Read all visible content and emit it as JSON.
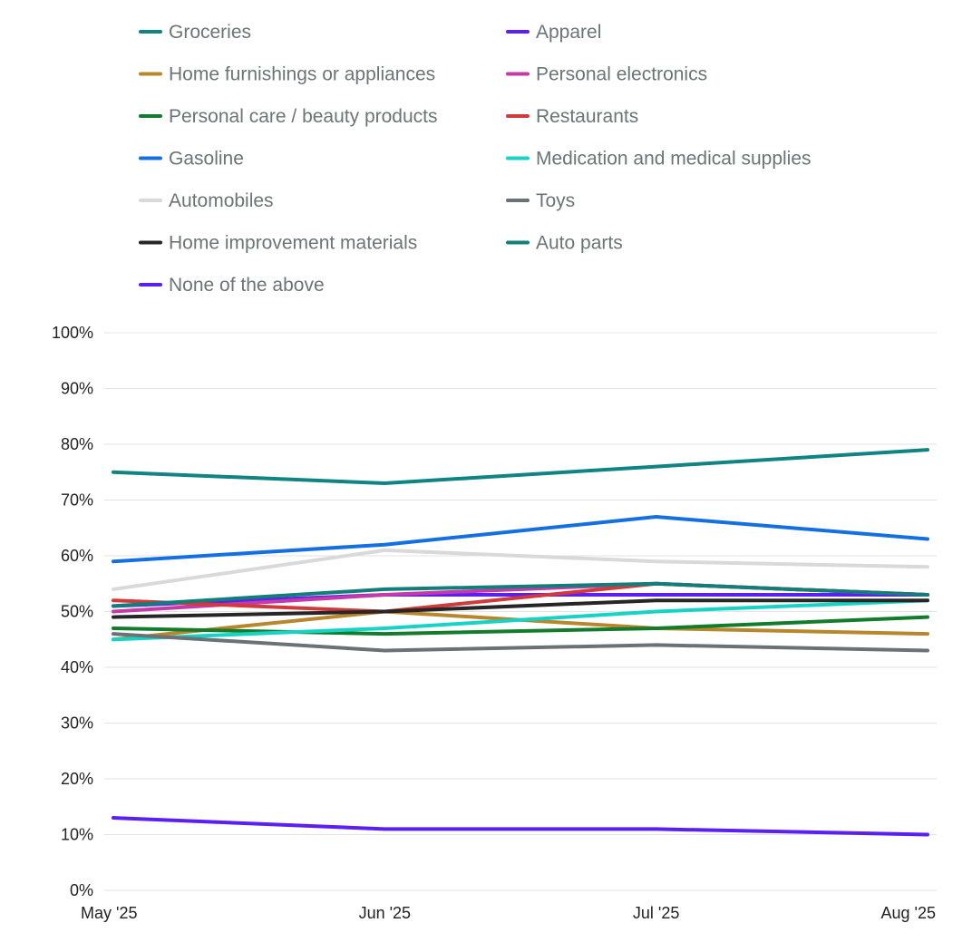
{
  "chart_data": {
    "type": "line",
    "title": "",
    "xlabel": "",
    "ylabel": "",
    "categories": [
      "May '25",
      "Jun '25",
      "Jul '25",
      "Aug '25"
    ],
    "ylim": [
      0,
      100
    ],
    "yticks": [
      "0%",
      "10%",
      "20%",
      "30%",
      "40%",
      "50%",
      "60%",
      "70%",
      "80%",
      "90%",
      "100%"
    ],
    "grid": true,
    "legend_position": "top",
    "series": [
      {
        "name": "Groceries",
        "color": "#0f8482",
        "values": [
          75,
          73,
          76,
          79
        ]
      },
      {
        "name": "Apparel",
        "color": "#5b1ff2",
        "values": [
          51,
          53,
          53,
          53
        ]
      },
      {
        "name": "Home furnishings or appliances",
        "color": "#b8862b",
        "values": [
          45,
          50,
          47,
          46
        ]
      },
      {
        "name": "Personal electronics",
        "color": "#c43aa8",
        "values": [
          50,
          53,
          55,
          53
        ]
      },
      {
        "name": "Personal care / beauty products",
        "color": "#137c2c",
        "values": [
          47,
          46,
          47,
          49
        ]
      },
      {
        "name": "Restaurants",
        "color": "#d13a3a",
        "values": [
          52,
          50,
          55,
          53
        ]
      },
      {
        "name": "Gasoline",
        "color": "#1470e0",
        "values": [
          59,
          62,
          67,
          63
        ]
      },
      {
        "name": "Medication and medical supplies",
        "color": "#17d3c6",
        "values": [
          45,
          47,
          50,
          52
        ]
      },
      {
        "name": "Automobiles",
        "color": "#d9d9d9",
        "values": [
          54,
          61,
          59,
          58
        ]
      },
      {
        "name": "Toys",
        "color": "#6b7275",
        "values": [
          46,
          43,
          44,
          43
        ]
      },
      {
        "name": "Home improvement materials",
        "color": "#262626",
        "values": [
          49,
          50,
          52,
          52
        ]
      },
      {
        "name": "Auto parts",
        "color": "#117e7a",
        "values": [
          51,
          54,
          55,
          53
        ]
      },
      {
        "name": "None of the above",
        "color": "#5b1ff2",
        "values": [
          13,
          11,
          11,
          10
        ]
      }
    ]
  }
}
